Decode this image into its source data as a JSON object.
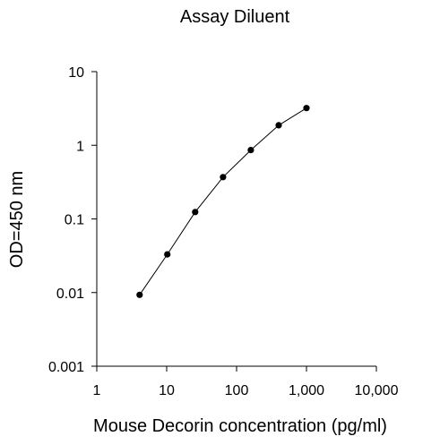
{
  "chart_data": {
    "type": "line",
    "title": "Assay Diluent",
    "xlabel": "Mouse Decorin concentration (pg/ml)",
    "ylabel": "OD=450 nm",
    "x_scale": "log",
    "y_scale": "log",
    "xlim": [
      1,
      10000
    ],
    "ylim": [
      0.001,
      10
    ],
    "x_ticks": [
      1,
      10,
      100,
      1000,
      10000
    ],
    "x_tick_labels": [
      "1",
      "10",
      "100",
      "1,000",
      "10,000"
    ],
    "y_ticks": [
      0.001,
      0.01,
      0.1,
      1,
      10
    ],
    "y_tick_labels": [
      "0.001",
      "0.01",
      "0.1",
      "1",
      "10"
    ],
    "grid": false,
    "legend": false,
    "series": [
      {
        "x": [
          4.1,
          10.2,
          25.6,
          64,
          160,
          400,
          1000
        ],
        "y": [
          0.0093,
          0.033,
          0.124,
          0.37,
          0.86,
          1.87,
          3.2
        ]
      }
    ]
  }
}
